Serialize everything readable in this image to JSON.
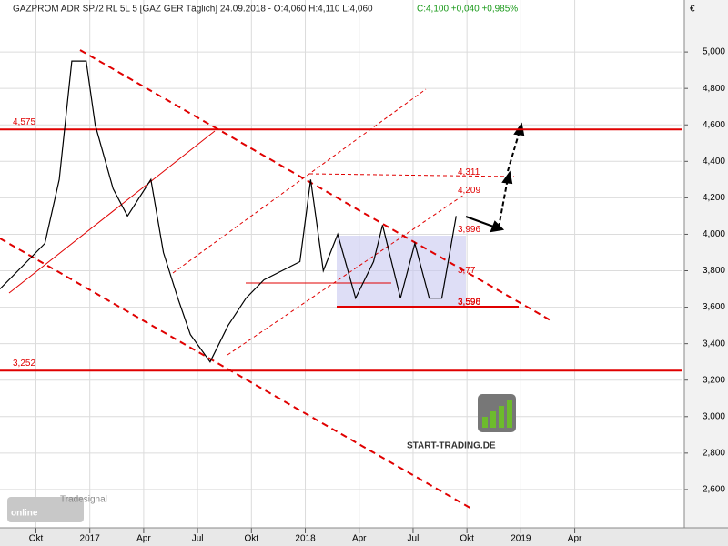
{
  "chart_data": {
    "type": "line",
    "title": "GAZPROM ADR SP./2 RL 5L 5 [GAZ GER  Täglich] 24.09.2018 - O:4,060 H:4,110 L:4,060",
    "subtitle": "C:4,100 +0,040 +0,985%",
    "y_unit": "€",
    "x": [
      -2,
      -1,
      0.5,
      1.3,
      2,
      2.8,
      3.3,
      4.3,
      5.1,
      6.4,
      7.1,
      7.9,
      8.6,
      9.7,
      10.7,
      11.7,
      12.7,
      13.7,
      14.7,
      15.3,
      16,
      16.8,
      17.8,
      18.8,
      19.3,
      20.3,
      21.1,
      21.9,
      22.6,
      23.4
    ],
    "series": [
      {
        "name": "GAZPROM ADR",
        "color": "#000000",
        "values": [
          3700,
          3800,
          3950,
          4300,
          4950,
          4950,
          4600,
          4250,
          4100,
          4300,
          3900,
          3650,
          3450,
          3300,
          3500,
          3650,
          3750,
          3800,
          3850,
          4300,
          3800,
          4000,
          3650,
          3850,
          4050,
          3650,
          3950,
          3650,
          3650,
          4100
        ]
      }
    ],
    "xlim": [
      -2,
      36
    ],
    "xticks": [
      {
        "value": 0,
        "label": "Okt"
      },
      {
        "value": 3,
        "label": "2017"
      },
      {
        "value": 6,
        "label": "Apr"
      },
      {
        "value": 9,
        "label": "Jul"
      },
      {
        "value": 12,
        "label": "Okt"
      },
      {
        "value": 15,
        "label": "2018"
      },
      {
        "value": 18,
        "label": "Apr"
      },
      {
        "value": 21,
        "label": "Jul"
      },
      {
        "value": 24,
        "label": "Okt"
      },
      {
        "value": 27,
        "label": "2019"
      },
      {
        "value": 30,
        "label": "Apr"
      }
    ],
    "ylim": [
      2390,
      5285
    ],
    "yticks": [
      {
        "value": 2600,
        "label": "2,600"
      },
      {
        "value": 2800,
        "label": "2,800"
      },
      {
        "value": 3000,
        "label": "3,000"
      },
      {
        "value": 3200,
        "label": "3,200"
      },
      {
        "value": 3400,
        "label": "3,400"
      },
      {
        "value": 3600,
        "label": "3,600"
      },
      {
        "value": 3800,
        "label": "3,800"
      },
      {
        "value": 4000,
        "label": "4,000"
      },
      {
        "value": 4200,
        "label": "4,200"
      },
      {
        "value": 4400,
        "label": "4,400"
      },
      {
        "value": 4600,
        "label": "4,600"
      },
      {
        "value": 4800,
        "label": "4,800"
      },
      {
        "value": 5000,
        "label": "5,000"
      }
    ],
    "grid": true,
    "levels": [
      {
        "value": 4575,
        "label": "4,575"
      },
      {
        "value": 3252,
        "label": "3,252"
      }
    ],
    "markers": [
      {
        "value": 4311,
        "label": "4,311"
      },
      {
        "value": 4209,
        "label": "4,209"
      },
      {
        "value": 3996,
        "label": "3,996"
      },
      {
        "value": 3770,
        "label": "3,77"
      },
      {
        "value": 3598,
        "label": "3,598"
      },
      {
        "value": 3596,
        "label": "3,596"
      }
    ],
    "logo": "START-TRADING.DE",
    "vendor": "Tradesignal",
    "vendor_mark": "online"
  }
}
